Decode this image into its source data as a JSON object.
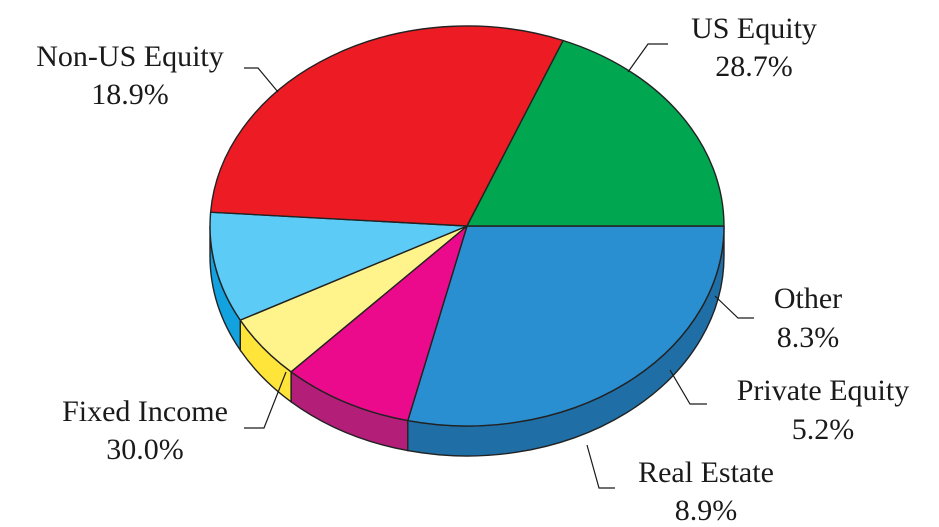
{
  "chart_data": {
    "type": "pie",
    "title": "",
    "legend": "none",
    "slices": [
      {
        "name": "US Equity",
        "value": 28.7,
        "label": "28.7%",
        "color": "#2a8fd0",
        "side_color": "#1f6fa6"
      },
      {
        "name": "Other",
        "value": 8.3,
        "label": "8.3%",
        "color": "#ec0a8c",
        "side_color": "#b21e78"
      },
      {
        "name": "Private Equity",
        "value": 5.2,
        "label": "5.2%",
        "color": "#fff38c",
        "side_color": "#ffe53a"
      },
      {
        "name": "Real Estate",
        "value": 8.9,
        "label": "8.9%",
        "color": "#5ccbf5",
        "side_color": "#12a2df"
      },
      {
        "name": "Fixed Income",
        "value": 30.0,
        "label": "30.0%",
        "color": "#ed1c24",
        "side_color": "#c0573a"
      },
      {
        "name": "Non-US Equity",
        "value": 18.9,
        "label": "18.9%",
        "color": "#00a650",
        "side_color": "#00843f"
      }
    ]
  }
}
